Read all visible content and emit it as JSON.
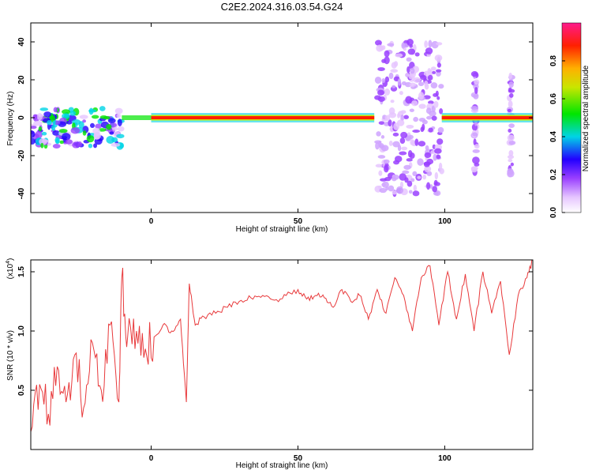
{
  "title": "C2E2.2024.316.03.54.G24",
  "chart_data": [
    {
      "type": "heatmap",
      "xlabel": "Height of straight line (km)",
      "ylabel": "Frequency (Hz)",
      "xlim": [
        -41,
        130
      ],
      "ylim": [
        -50,
        50
      ],
      "xticks": [
        0,
        50,
        100
      ],
      "yticks": [
        -40,
        -20,
        0,
        20,
        40
      ],
      "grid": false,
      "colorbar": {
        "label": "Normalized spectral amplitude",
        "ticks": [
          "0.0",
          "0.2",
          "0.4",
          "0.6",
          "0.8"
        ],
        "range": [
          0,
          1
        ]
      },
      "ridge": {
        "description": "strong carrier at ~0 Hz",
        "segments": [
          {
            "x": [
              0,
              76
            ],
            "freq": 0,
            "amplitude": 0.95
          },
          {
            "x": [
              99,
              130
            ],
            "freq": 0,
            "amplitude": 0.95
          }
        ],
        "noisy_region": {
          "x": [
            -41,
            -10
          ],
          "freq_spread": [
            -15,
            5
          ]
        },
        "scatter_bursts": [
          {
            "x": [
              77,
              99
            ],
            "freq_spread": [
              -40,
              40
            ]
          },
          {
            "x": [
              110,
              111
            ],
            "freq_spread": [
              -30,
              30
            ]
          },
          {
            "x": [
              122,
              123
            ],
            "freq_spread": [
              -30,
              30
            ]
          }
        ]
      }
    },
    {
      "type": "line",
      "xlabel": "Height of straight line (km)",
      "ylabel": "SNR (10 * v/v)",
      "y_multiplier": "(x10^4)",
      "xlim": [
        -41,
        130
      ],
      "ylim": [
        0,
        1.6
      ],
      "xticks": [
        0,
        50,
        100
      ],
      "yticks": [
        0.5,
        1.0,
        1.5
      ],
      "ytick_labels": [
        "0.5",
        "1.0",
        "1.5"
      ],
      "grid": false,
      "series": [
        {
          "color": "#e8393b",
          "x": [
            -41,
            -38,
            -35,
            -32,
            -29,
            -26,
            -23,
            -20,
            -17,
            -14,
            -11,
            -10,
            -8,
            -5,
            -2,
            1,
            4,
            7,
            10,
            12,
            13,
            15,
            18,
            22,
            26,
            30,
            34,
            38,
            42,
            46,
            50,
            53,
            56,
            59,
            62,
            65,
            68,
            71,
            74,
            77,
            80,
            83,
            86,
            89,
            92,
            95,
            98,
            101,
            104,
            107,
            110,
            113,
            116,
            119,
            122,
            125,
            128,
            130
          ],
          "y": [
            0.15,
            0.55,
            0.3,
            0.7,
            0.4,
            0.8,
            0.35,
            0.9,
            0.5,
            1.05,
            0.4,
            1.45,
            0.95,
            1.0,
            0.85,
            0.95,
            1.05,
            1.0,
            1.1,
            0.4,
            1.4,
            1.05,
            1.12,
            1.15,
            1.2,
            1.25,
            1.28,
            1.3,
            1.26,
            1.3,
            1.35,
            1.27,
            1.3,
            1.28,
            1.2,
            1.35,
            1.25,
            1.3,
            1.1,
            1.35,
            1.15,
            1.45,
            1.3,
            1.0,
            1.45,
            1.55,
            1.05,
            1.5,
            1.1,
            1.48,
            1.0,
            1.5,
            1.15,
            1.42,
            0.8,
            1.3,
            1.45,
            1.6
          ]
        }
      ]
    }
  ]
}
